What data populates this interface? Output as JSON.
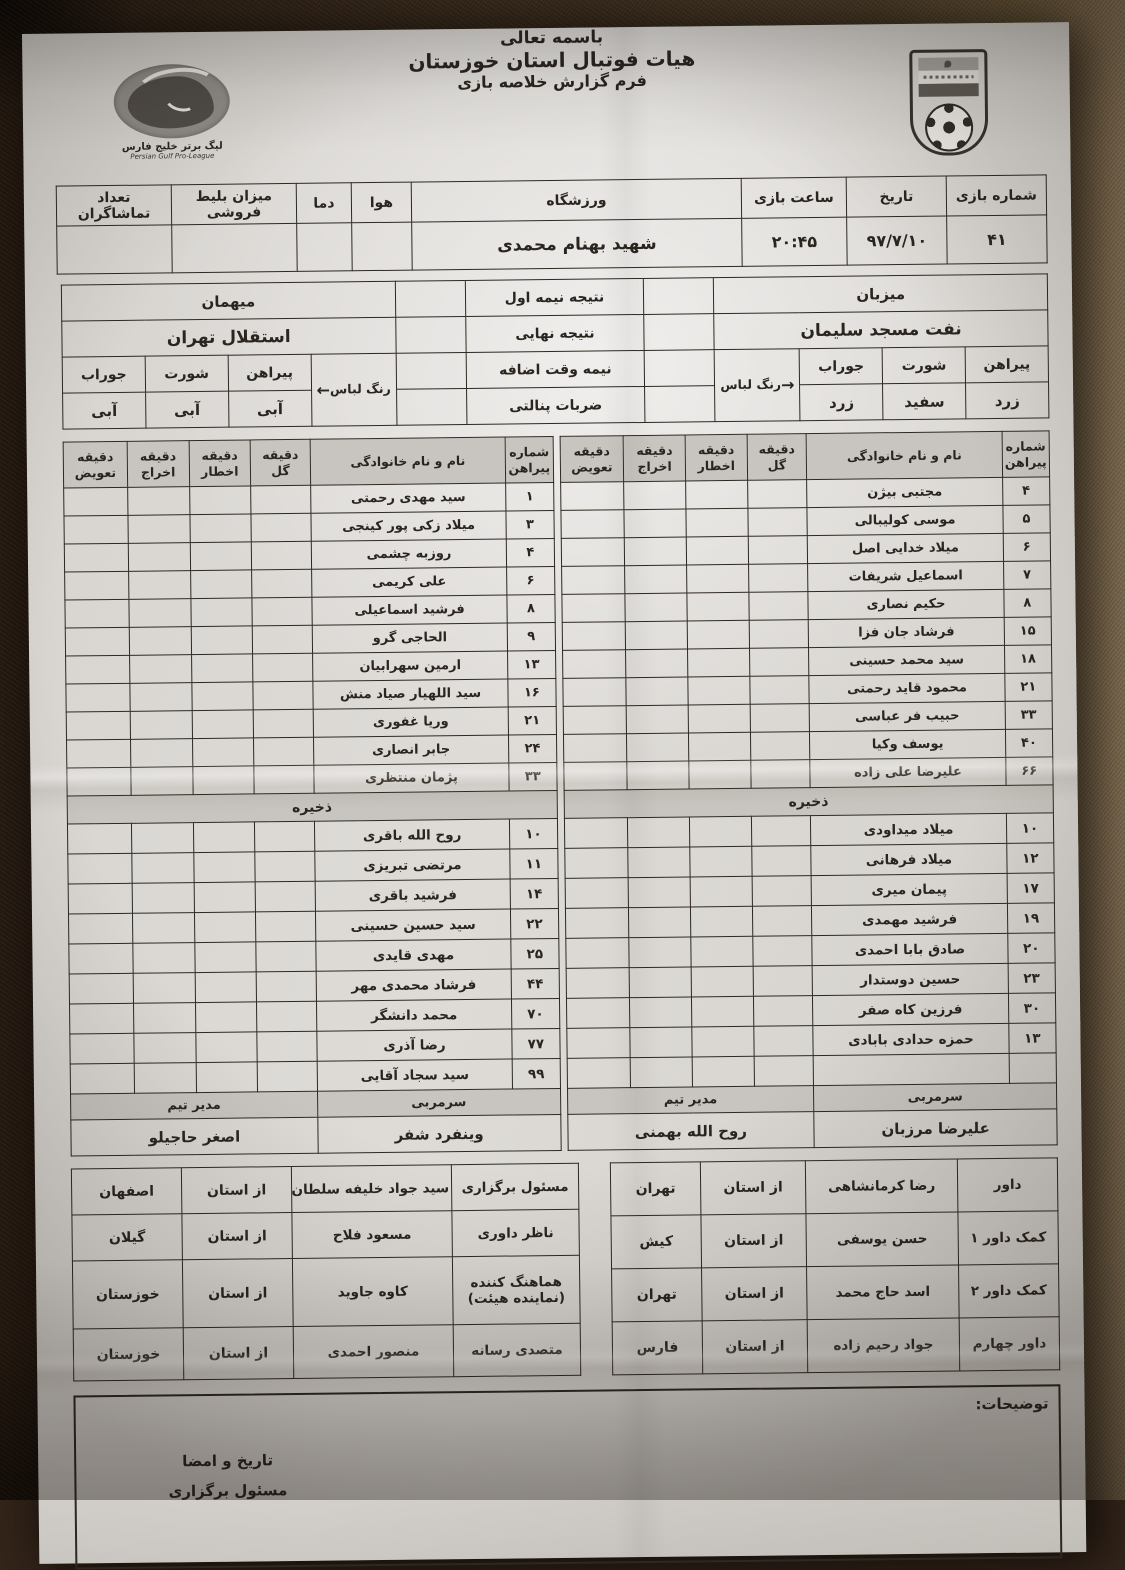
{
  "colors": {
    "paper": "#d9d6d2",
    "carpet": "#38281a",
    "table_line": "#2e2822",
    "header_shade": "#c8c5c0"
  },
  "title": {
    "bismillah": "باسمه تعالی",
    "org": "هیات فوتبال استان خوزستان",
    "form": "فرم گزارش خلاصه بازی"
  },
  "logos": {
    "league_fa": "لیگ برتر خلیج فارس",
    "league_en": "Persian Gulf Pro-League"
  },
  "info": {
    "labels": {
      "match_no": "شماره بازی",
      "date": "تاریخ",
      "time": "ساعت بازی",
      "stadium": "ورزشگاه",
      "weather": "هوا",
      "temp": "دما",
      "tickets": "میزان بلیط فروشی",
      "attendance": "تعداد تماشاگران"
    },
    "values": {
      "match_no": "۴۱",
      "date": "۹۷/۷/۱۰",
      "time": "۲۰:۴۵",
      "stadium": "شهید بهنام محمدی",
      "weather": "",
      "temp": "",
      "tickets": "",
      "attendance": ""
    }
  },
  "results": {
    "half1": "نتیجه نیمه اول",
    "final": "نتیجه نهایی",
    "extra": "نیمه وقت اضافه",
    "penalties": "ضربات پنالتی"
  },
  "kit": {
    "shirt": "پیراهن",
    "shorts": "شورت",
    "socks": "جوراب",
    "color_label": "رنگ لباس",
    "host_arrow": "→",
    "guest_arrow": "←"
  },
  "teams": {
    "host": {
      "role": "میزبان",
      "name": "نفت مسجد سلیمان",
      "shirt": "زرد",
      "shorts": "سفید",
      "socks": "زرد",
      "coach": "علیرضا مرزبان",
      "manager": "روح الله بهمنی",
      "starters": [
        {
          "no": "۴",
          "name": "مجتبی بیژن"
        },
        {
          "no": "۵",
          "name": "موسی کولیبالی"
        },
        {
          "no": "۶",
          "name": "میلاد خدایی اصل"
        },
        {
          "no": "۷",
          "name": "اسماعیل شریفات"
        },
        {
          "no": "۸",
          "name": "حکیم نصاری"
        },
        {
          "no": "۱۵",
          "name": "فرشاد جان فزا"
        },
        {
          "no": "۱۸",
          "name": "سید محمد حسینی"
        },
        {
          "no": "۲۱",
          "name": "محمود قاید رحمتی"
        },
        {
          "no": "۳۳",
          "name": "حبیب فر عباسی"
        },
        {
          "no": "۴۰",
          "name": "یوسف وکیا"
        },
        {
          "no": "۶۶",
          "name": "علیرضا علی زاده"
        }
      ],
      "subs": [
        {
          "no": "۱۰",
          "name": "میلاد میداودی"
        },
        {
          "no": "۱۲",
          "name": "میلاد فرهانی"
        },
        {
          "no": "۱۷",
          "name": "پیمان میری"
        },
        {
          "no": "۱۹",
          "name": "فرشید مهمدی"
        },
        {
          "no": "۲۰",
          "name": "صادق بابا احمدی"
        },
        {
          "no": "۲۳",
          "name": "حسین دوستدار"
        },
        {
          "no": "۳۰",
          "name": "فرزین کاه صفر"
        },
        {
          "no": "۱۳",
          "name": "حمزه حدادی بابادی"
        },
        {
          "no": "",
          "name": ""
        }
      ]
    },
    "guest": {
      "role": "میهمان",
      "name": "استقلال تهران",
      "shirt": "آبی",
      "shorts": "آبی",
      "socks": "آبی",
      "coach": "وینفرد شفر",
      "manager": "اصغر حاجیلو",
      "starters": [
        {
          "no": "۱",
          "name": "سید مهدی رحمتی"
        },
        {
          "no": "۳",
          "name": "میلاد زکی پور کینجی"
        },
        {
          "no": "۴",
          "name": "روزبه چشمی"
        },
        {
          "no": "۶",
          "name": "علی کریمی"
        },
        {
          "no": "۸",
          "name": "فرشید اسماعیلی"
        },
        {
          "no": "۹",
          "name": "الحاجی گرو"
        },
        {
          "no": "۱۳",
          "name": "ارمین سهرابیان"
        },
        {
          "no": "۱۶",
          "name": "سید اللهیار صیاد منش"
        },
        {
          "no": "۲۱",
          "name": "وریا غفوری"
        },
        {
          "no": "۲۴",
          "name": "جابر انصاری"
        },
        {
          "no": "۳۳",
          "name": "پژمان منتظری"
        }
      ],
      "subs": [
        {
          "no": "۱۰",
          "name": "روح الله باقری"
        },
        {
          "no": "۱۱",
          "name": "مرتضی تبریزی"
        },
        {
          "no": "۱۴",
          "name": "فرشید باقری"
        },
        {
          "no": "۲۲",
          "name": "سید حسین حسینی"
        },
        {
          "no": "۲۵",
          "name": "مهدی قایدی"
        },
        {
          "no": "۴۴",
          "name": "فرشاد محمدی مهر"
        },
        {
          "no": "۷۰",
          "name": "محمد دانشگر"
        },
        {
          "no": "۷۷",
          "name": "رضا آذری"
        },
        {
          "no": "۹۹",
          "name": "سید سجاد آقایی"
        }
      ]
    }
  },
  "squad_table": {
    "no1": "شماره",
    "no2": "پیراهن",
    "name": "نام و نام خانوادگی",
    "goal1": "دقیقه",
    "goal2": "گل",
    "warn1": "دقیقه",
    "warn2": "اخطار",
    "out1": "دقیقه",
    "out2": "اخراج",
    "sub1": "دقیقه",
    "sub2": "تعویض",
    "bench": "ذخیره",
    "coach": "سرمربی",
    "manager": "مدیر تیم"
  },
  "officials": {
    "referees": [
      {
        "role": "داور",
        "name": "رضا کرمانشاهی",
        "from": "از استان",
        "province": "تهران"
      },
      {
        "role": "کمک داور ۱",
        "name": "حسن یوسفی",
        "from": "از استان",
        "province": "کیش"
      },
      {
        "role": "کمک داور ۲",
        "name": "اسد حاج محمد",
        "from": "از استان",
        "province": "تهران"
      },
      {
        "role": "داور چهارم",
        "name": "جواد رحیم زاده",
        "from": "از استان",
        "province": "فارس"
      }
    ],
    "staff": [
      {
        "role": "مسئول برگزاری",
        "name": "سید جواد خلیفه سلطان",
        "from": "از استان",
        "province": "اصفهان"
      },
      {
        "role": "ناظر داوری",
        "name": "مسعود فلاح",
        "from": "از استان",
        "province": "گیلان"
      },
      {
        "role": "هماهنگ کننده (نماینده هیئت)",
        "name": "کاوه جاوید",
        "from": "از استان",
        "province": "خوزستان"
      },
      {
        "role": "متصدی رسانه",
        "name": "منصور احمدی",
        "from": "از استان",
        "province": "خوزستان"
      }
    ]
  },
  "footer": {
    "notes": "توضیحات:",
    "sign1": "تاریخ و امضا",
    "sign2": "مسئول برگزاری"
  }
}
